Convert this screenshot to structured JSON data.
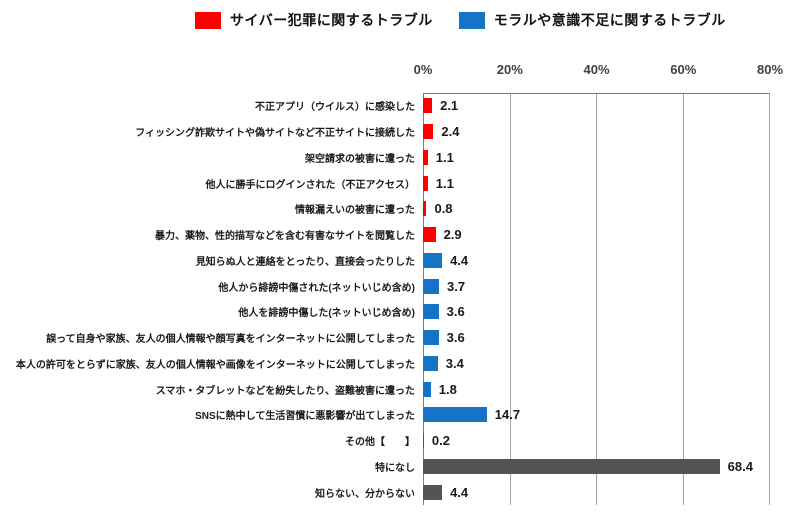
{
  "page": {
    "background": "#FFFFFF"
  },
  "chart_data": {
    "type": "bar",
    "orientation": "horizontal",
    "title": "",
    "legend_entries": [
      {
        "id": "cyber",
        "label": "サイバー犯罪に関するトラブル",
        "color": "#FF0000"
      },
      {
        "id": "moral",
        "label": "モラルや意識不足に関するトラブル",
        "color": "#1474C8"
      }
    ],
    "colors": {
      "cyber": "#FF0000",
      "moral": "#1474C8",
      "neutral": "#545454"
    },
    "x_axis": {
      "ticks": [
        "0%",
        "20%",
        "40%",
        "60%",
        "80%"
      ],
      "min": 0,
      "max": 80,
      "grid": true,
      "position": "top"
    },
    "unit": "%",
    "bars": [
      {
        "label": "不正アプリ（ウイルス）に感染した",
        "value": 2.1,
        "group": "cyber"
      },
      {
        "label": "フィッシング詐欺サイトや偽サイトなど不正サイトに接続した",
        "value": 2.4,
        "group": "cyber"
      },
      {
        "label": "架空請求の被害に遭った",
        "value": 1.1,
        "group": "cyber"
      },
      {
        "label": "他人に勝手にログインされた（不正アクセス）",
        "value": 1.1,
        "group": "cyber"
      },
      {
        "label": "情報漏えいの被害に遭った",
        "value": 0.8,
        "group": "cyber"
      },
      {
        "label": "暴力、薬物、性的描写などを含む有害なサイトを閲覧した",
        "value": 2.9,
        "group": "cyber"
      },
      {
        "label": "見知らぬ人と連絡をとったり、直接会ったりした",
        "value": 4.4,
        "group": "moral"
      },
      {
        "label": "他人から誹謗中傷された(ネットいじめ含め)",
        "value": 3.7,
        "group": "moral"
      },
      {
        "label": "他人を誹謗中傷した(ネットいじめ含め)",
        "value": 3.6,
        "group": "moral"
      },
      {
        "label": "誤って自身や家族、友人の個人情報や顔写真をインターネットに公開してしまった",
        "value": 3.6,
        "group": "moral"
      },
      {
        "label": "本人の許可をとらずに家族、友人の個人情報や画像をインターネットに公開してしまった",
        "value": 3.4,
        "group": "moral"
      },
      {
        "label": "スマホ・タブレットなどを紛失したり、盗難被害に遭った",
        "value": 1.8,
        "group": "moral"
      },
      {
        "label": "SNSに熱中して生活習慣に悪影響が出てしまった",
        "value": 14.7,
        "group": "moral"
      },
      {
        "label": "その他【　　】",
        "value": 0.2,
        "group": "neutral"
      },
      {
        "label": "特になし",
        "value": 68.4,
        "group": "neutral"
      },
      {
        "label": "知らない、分からない",
        "value": 4.4,
        "group": "neutral"
      }
    ]
  }
}
